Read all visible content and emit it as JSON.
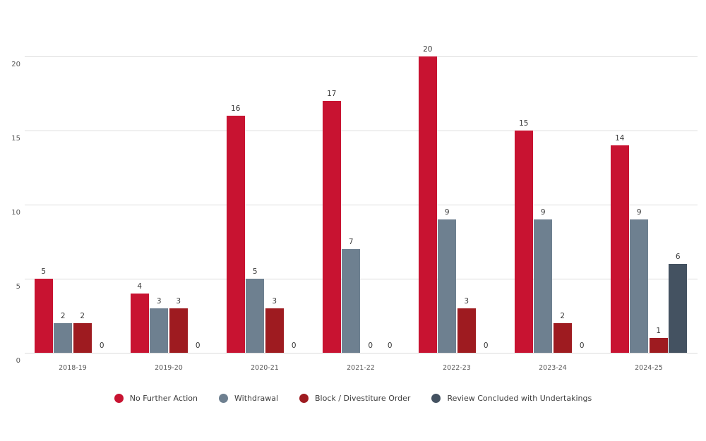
{
  "chart_data": {
    "type": "bar",
    "title": "",
    "categories": [
      "2018-19",
      "2019-20",
      "2020-21",
      "2021-22",
      "2022-23",
      "2023-24",
      "2024-25"
    ],
    "series": [
      {
        "name": "No Further Action",
        "color": "#C81331",
        "values": [
          5,
          4,
          16,
          17,
          20,
          15,
          14
        ]
      },
      {
        "name": "Withdrawal",
        "color": "#6E8090",
        "values": [
          2,
          3,
          5,
          7,
          9,
          9,
          9
        ]
      },
      {
        "name": "Block / Divestiture Order",
        "color": "#9E1B20",
        "values": [
          2,
          3,
          3,
          0,
          3,
          2,
          1
        ]
      },
      {
        "name": "Review Concluded with Undertakings",
        "color": "#445261",
        "values": [
          0,
          0,
          0,
          0,
          0,
          0,
          6
        ]
      }
    ],
    "xlabel": "",
    "ylabel": "",
    "y_axis": {
      "ticks": [
        0,
        5,
        10,
        15,
        20
      ],
      "ylim": [
        0,
        21
      ]
    },
    "grid": true,
    "value_labels": true,
    "legend_position": "bottom",
    "background_color": "#FFFFFF",
    "gridline_color": "#DCDCDC",
    "axis_text_color": "#595959"
  }
}
